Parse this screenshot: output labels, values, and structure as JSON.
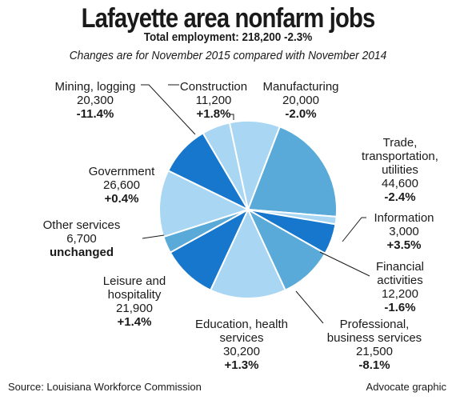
{
  "title": "Lafayette area nonfarm jobs",
  "subtitle": "Total employment: 218,200 -2.3%",
  "note": "Changes are for November 2015 compared with November 2014",
  "source": "Source: Louisiana Workforce Commission",
  "credit": "Advocate graphic",
  "colors": {
    "dark": "#1677cc",
    "medium": "#5aaad9",
    "light": "#a9d6f2",
    "line": "#1a1a1a"
  },
  "chart_data": {
    "type": "pie",
    "title": "Lafayette area nonfarm jobs",
    "slices": [
      {
        "name": "Manufacturing",
        "value": 20000,
        "change": "-2.0%",
        "color": "#a9d6f2"
      },
      {
        "name": "Trade, transportation, utilities",
        "value": 44600,
        "change": "-2.4%",
        "color": "#5aaad9"
      },
      {
        "name": "Information",
        "value": 3000,
        "change": "+3.5%",
        "color": "#a9d6f2"
      },
      {
        "name": "Financial activities",
        "value": 12200,
        "change": "-1.6%",
        "color": "#1677cc"
      },
      {
        "name": "Professional, business services",
        "value": 21500,
        "change": "-8.1%",
        "color": "#5aaad9"
      },
      {
        "name": "Education, health services",
        "value": 30200,
        "change": "+1.3%",
        "color": "#a9d6f2"
      },
      {
        "name": "Leisure and hospitality",
        "value": 21900,
        "change": "+1.4%",
        "color": "#1677cc"
      },
      {
        "name": "Other services",
        "value": 6700,
        "change": "unchanged",
        "color": "#5aaad9"
      },
      {
        "name": "Government",
        "value": 26600,
        "change": "+0.4%",
        "color": "#a9d6f2"
      },
      {
        "name": "Mining, logging",
        "value": 20300,
        "change": "-11.4%",
        "color": "#1677cc"
      },
      {
        "name": "Construction",
        "value": 11200,
        "change": "+1.8%",
        "color": "#a9d6f2"
      }
    ]
  },
  "labels": {
    "mining": {
      "line1": "Mining, logging",
      "value": "20,300",
      "change": "-11.4%"
    },
    "construction": {
      "line1": "Construction",
      "value": "11,200",
      "change": "+1.8%"
    },
    "manufacturing": {
      "line1": "Manufacturing",
      "value": "20,000",
      "change": "-2.0%"
    },
    "trade": {
      "line1": "Trade,",
      "line2": "transportation,",
      "line3": "utilities",
      "value": "44,600",
      "change": "-2.4%"
    },
    "government": {
      "line1": "Government",
      "value": "26,600",
      "change": "+0.4%"
    },
    "information": {
      "line1": "Information",
      "value": "3,000",
      "change": "+3.5%"
    },
    "other": {
      "line1": "Other services",
      "value": "6,700",
      "change": "unchanged"
    },
    "financial": {
      "line1": "Financial",
      "line2": "activities",
      "value": "12,200",
      "change": "-1.6%"
    },
    "leisure": {
      "line1": "Leisure and",
      "line2": "hospitality",
      "value": "21,900",
      "change": "+1.4%"
    },
    "education": {
      "line1": "Education, health",
      "line2": "services",
      "value": "30,200",
      "change": "+1.3%"
    },
    "professional": {
      "line1": "Professional,",
      "line2": "business services",
      "value": "21,500",
      "change": "-8.1%"
    }
  }
}
